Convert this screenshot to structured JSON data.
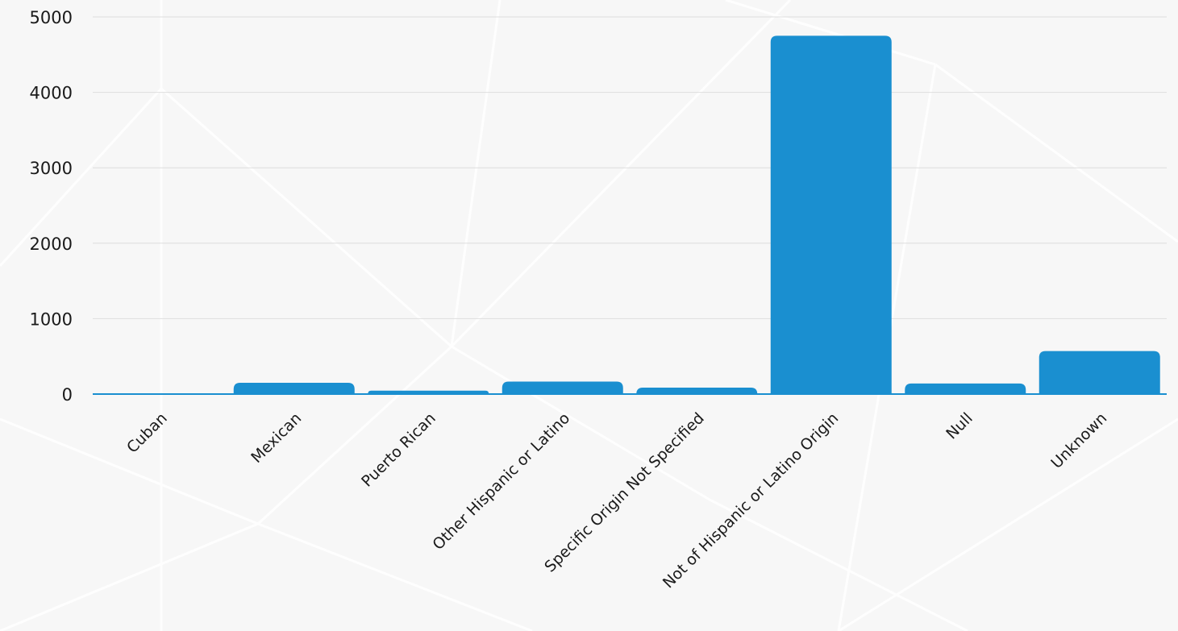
{
  "chart_data": {
    "type": "bar",
    "title": "",
    "xlabel": "",
    "ylabel": "",
    "ylim": [
      0,
      5000
    ],
    "yticks": [
      0,
      1000,
      2000,
      3000,
      4000,
      5000
    ],
    "grid": true,
    "color": "#1a8fd0",
    "categories": [
      "Cuban",
      "Mexican",
      "Puerto Rican",
      "Other Hispanic or Latino",
      "Specific Origin Not Specified",
      "Not of Hispanic or Latino Origin",
      "Null",
      "Unknown"
    ],
    "values": [
      5,
      150,
      45,
      165,
      85,
      4750,
      140,
      570
    ]
  }
}
